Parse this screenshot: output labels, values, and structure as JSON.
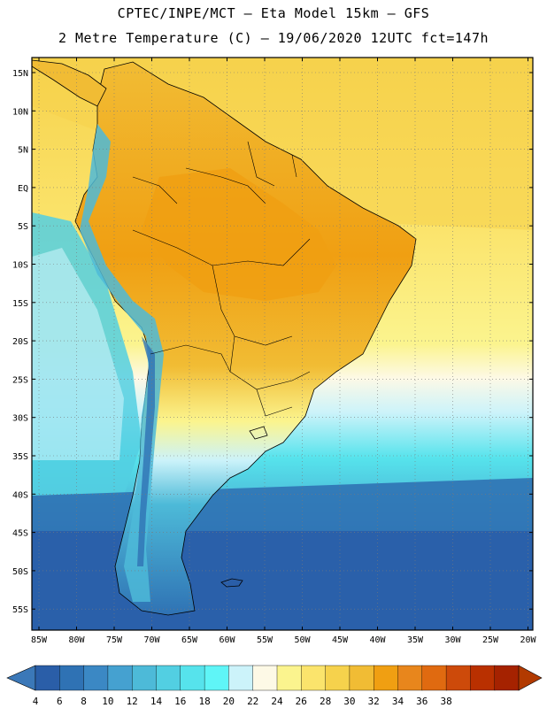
{
  "header": {
    "line1": "CPTEC/INPE/MCT –  Eta Model 15km – GFS",
    "line2": "2 Metre Temperature (C) – 19/06/2020 12UTC fct=147h"
  },
  "axes": {
    "lat_labels": [
      "15N",
      "10N",
      "5N",
      "EQ",
      "5S",
      "10S",
      "15S",
      "20S",
      "25S",
      "30S",
      "35S",
      "40S",
      "45S",
      "50S",
      "55S"
    ],
    "lon_labels": [
      "85W",
      "80W",
      "75W",
      "70W",
      "65W",
      "60W",
      "55W",
      "50W",
      "45W",
      "40W",
      "35W",
      "30W",
      "25W",
      "20W"
    ]
  },
  "colorbar": {
    "labels": [
      "4",
      "6",
      "8",
      "10",
      "12",
      "14",
      "16",
      "18",
      "20",
      "22",
      "24",
      "26",
      "28",
      "30",
      "32",
      "34",
      "36",
      "38"
    ],
    "colors": [
      "#2a5ea8",
      "#2f72b4",
      "#3b88c4",
      "#45a1d0",
      "#4dbad8",
      "#52cfe2",
      "#56e3ec",
      "#5ff5f7",
      "#ccf3fa",
      "#fdf9e6",
      "#fbf48e",
      "#fbe46c",
      "#f6d24c",
      "#f1bc34",
      "#f09f12",
      "#e8861c",
      "#e06a10",
      "#cd4a0a",
      "#b93000",
      "#a52200"
    ],
    "under_color": "#3b78b8",
    "over_color": "#b23a00"
  },
  "colors": {
    "ocean_cold": "#2f6ab0",
    "ocean_mid": "#4dbad8",
    "ocean_light": "#ccf3fa",
    "ocean_warm": "#fbe46c",
    "land_hot": "#f1bc34",
    "land_hotter": "#f09f12",
    "andes_cold": "#4dbad8"
  }
}
